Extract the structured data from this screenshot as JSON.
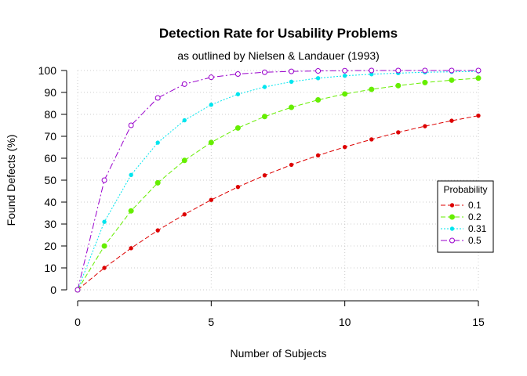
{
  "chart_data": {
    "type": "line",
    "title": "Detection Rate for Usability Problems",
    "subtitle": "as outlined by Nielsen & Landauer (1993)",
    "xlabel": "Number of Subjects",
    "ylabel": "Found Defects (%)",
    "xlim": [
      0,
      15
    ],
    "ylim": [
      0,
      100
    ],
    "xticks": [
      0,
      5,
      10,
      15
    ],
    "yticks": [
      0,
      10,
      20,
      30,
      40,
      50,
      60,
      70,
      80,
      90,
      100
    ],
    "grid": true,
    "legend": {
      "title": "Probability",
      "position": "right"
    },
    "x": [
      0,
      1,
      2,
      3,
      4,
      5,
      6,
      7,
      8,
      9,
      10,
      11,
      12,
      13,
      14,
      15
    ],
    "series": [
      {
        "name": "0.1",
        "color": "#dd0000",
        "marker": "dot-small",
        "values": [
          0,
          10,
          19,
          27.1,
          34.4,
          41,
          46.9,
          52.2,
          57,
          61.3,
          65.1,
          68.6,
          71.8,
          74.6,
          77.1,
          79.4
        ]
      },
      {
        "name": "0.2",
        "color": "#66ee00",
        "marker": "dot",
        "values": [
          0,
          20,
          36,
          48.8,
          59,
          67.2,
          73.8,
          79,
          83.2,
          86.6,
          89.3,
          91.4,
          93.1,
          94.5,
          95.6,
          96.5
        ]
      },
      {
        "name": "0.31",
        "color": "#00e5ee",
        "marker": "dot-small",
        "values": [
          0,
          31,
          52.4,
          67.1,
          77.3,
          84.4,
          89.2,
          92.5,
          94.9,
          96.5,
          97.6,
          98.3,
          98.8,
          99.2,
          99.4,
          99.6
        ]
      },
      {
        "name": "0.5",
        "color": "#9900cc",
        "marker": "circle-open",
        "values": [
          0,
          50,
          75,
          87.5,
          93.8,
          96.9,
          98.4,
          99.2,
          99.6,
          99.8,
          99.9,
          100,
          100,
          100,
          100,
          100
        ]
      }
    ]
  }
}
